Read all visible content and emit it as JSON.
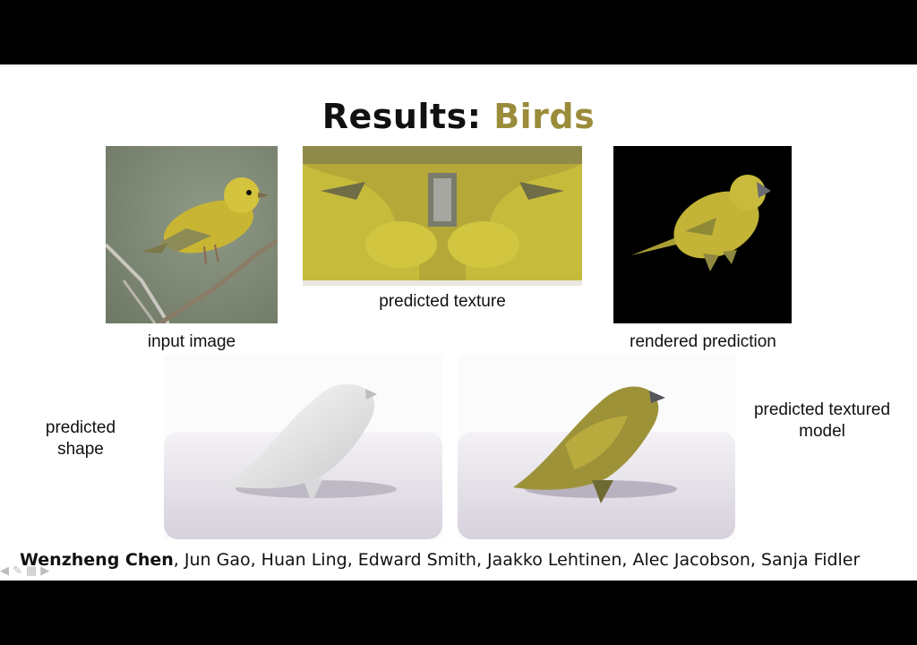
{
  "slide": {
    "title_prefix": "Results:",
    "title_accent": "Birds",
    "captions": {
      "input_image": "input image",
      "predicted_texture": "predicted texture",
      "rendered_prediction": "rendered prediction",
      "predicted_shape": "predicted\nshape",
      "predicted_textured_model": "predicted textured\nmodel"
    },
    "authors": {
      "first": "Wenzheng Chen",
      "rest": ", Jun Gao, Huan Ling, Edward Smith, Jaakko Lehtinen, Alec Jacobson, Sanja Fidler"
    }
  },
  "colors": {
    "accent": "#9a8c3a",
    "bird_yellow": "#c9b83a",
    "background": "#000000"
  },
  "icons": [
    "arrow-left-icon",
    "pencil-icon",
    "slides-icon",
    "arrow-right-icon"
  ]
}
